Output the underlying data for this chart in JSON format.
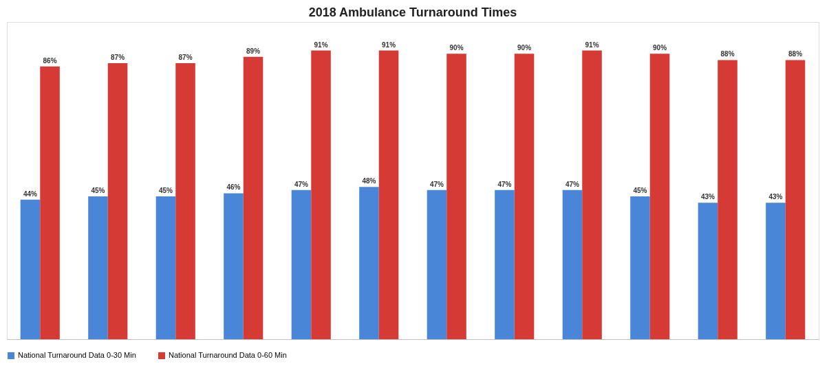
{
  "chart_data": {
    "type": "bar",
    "title": "2018 Ambulance Turnaround Times",
    "categories": [
      null,
      null,
      null,
      null,
      null,
      null,
      null,
      null,
      null,
      null,
      null,
      null
    ],
    "series": [
      {
        "name": "National Turnaround Data 0-30 Min",
        "color": "#4a86d8",
        "values": [
          44,
          45,
          45,
          46,
          47,
          48,
          47,
          47,
          47,
          45,
          43,
          43
        ],
        "value_labels": [
          "44%",
          "45%",
          "45%",
          "46%",
          "47%",
          "48%",
          "47%",
          "47%",
          "47%",
          "45%",
          "43%",
          "43%"
        ]
      },
      {
        "name": "National Turnaround Data 0-60 Min",
        "color": "#d63a35",
        "values": [
          86,
          87,
          87,
          89,
          91,
          91,
          90,
          90,
          91,
          90,
          88,
          88
        ],
        "value_labels": [
          "86%",
          "87%",
          "87%",
          "89%",
          "91%",
          "91%",
          "90%",
          "90%",
          "91%",
          "90%",
          "88%",
          "88%"
        ]
      }
    ],
    "ylim": [
      0,
      100
    ],
    "grid": false,
    "legend": "bottom",
    "tick_labels": false
  }
}
